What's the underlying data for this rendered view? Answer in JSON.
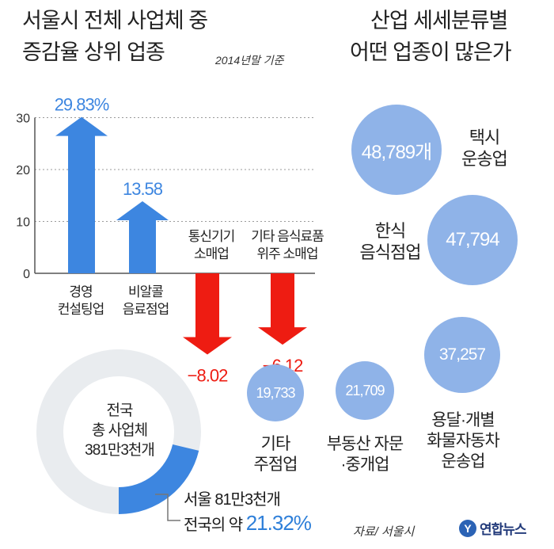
{
  "left_title_line1": "서울시 전체 사업체 중",
  "left_title_line2": "증감율 상위 업종",
  "basis": "2014년말 기준",
  "right_title_line1": "산업 세세분류별",
  "right_title_line2": "어떤 업종이 많은가",
  "chart_data": [
    {
      "type": "bar",
      "title": "서울시 전체 사업체 중 증감율 상위 업종",
      "categories": [
        {
          "line1": "경영",
          "line2": "컨설팅업"
        },
        {
          "line1": "비알콜",
          "line2": "음료점업"
        },
        {
          "line1": "통신기기",
          "line2": "소매업"
        },
        {
          "line1": "기타 음식료품",
          "line2": "위주 소매업"
        }
      ],
      "values": [
        29.83,
        13.58,
        -8.02,
        -6.12
      ],
      "value_labels": [
        "29.83%",
        "13.58",
        "−8.02",
        "−6.12"
      ],
      "yticks": [
        "30",
        "20",
        "10",
        "0"
      ],
      "ylim": [
        -10,
        30
      ],
      "grid": true,
      "colors": {
        "positive": "#3d86e0",
        "negative": "#ee1c12"
      }
    },
    {
      "type": "pie",
      "center_line1": "전국",
      "center_line2": "총 사업체",
      "center_line3": "381만3천개",
      "seoul_line1": "서울 81만3천개",
      "seoul_line2_prefix": "전국의 약 ",
      "seoul_share": "21.32%",
      "share_value": 21.32,
      "colors": {
        "seoul": "#3d86e0",
        "rest": "#e9ecef"
      }
    },
    {
      "type": "bubble",
      "title": "산업 세세분류별 어떤 업종이 많은가",
      "items": [
        {
          "value": "48,789개",
          "label1": "택시",
          "label2": "운송업",
          "label3": ""
        },
        {
          "value": "47,794",
          "label1": "한식",
          "label2": "음식점업",
          "label3": ""
        },
        {
          "value": "37,257",
          "label1": "용달·개별",
          "label2": "화물자동차",
          "label3": "운송업"
        },
        {
          "value": "21,709",
          "label1": "부동산 자문",
          "label2": "·중개업",
          "label3": ""
        },
        {
          "value": "19,733",
          "label1": "기타",
          "label2": "주점업",
          "label3": ""
        }
      ],
      "colors": {
        "bubble": "#8fb3e8"
      }
    }
  ],
  "source": "자료/ 서울시",
  "logo_text": "연합뉴스"
}
